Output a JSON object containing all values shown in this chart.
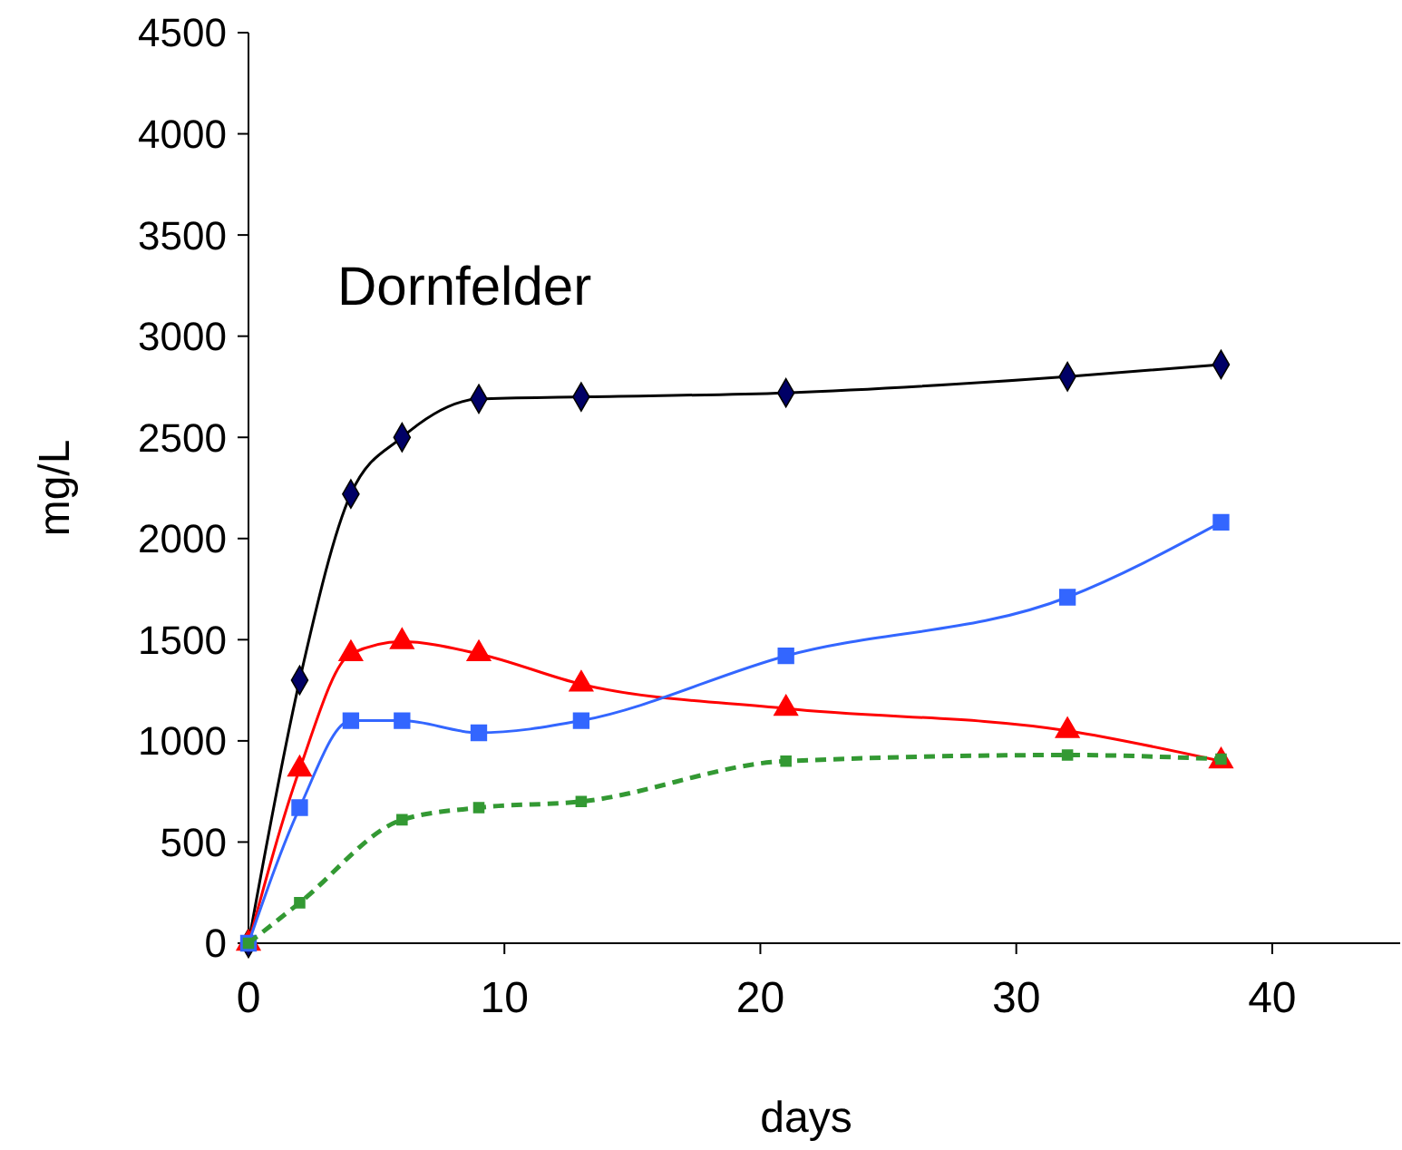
{
  "chart_data": {
    "type": "line",
    "xlabel": "days",
    "ylabel": "mg/L",
    "annotations": [
      "Dornfelder"
    ],
    "xlim": [
      0,
      45
    ],
    "xticks": [
      0,
      10,
      20,
      30,
      40
    ],
    "ylim": [
      0,
      4500
    ],
    "yticks": [
      0,
      500,
      1000,
      1500,
      2000,
      2500,
      3000,
      3500,
      4000,
      4500
    ],
    "grid": false,
    "x": [
      0,
      2,
      4,
      6,
      9,
      13,
      21,
      32,
      38
    ],
    "series": [
      {
        "color": "#000000",
        "marker": "diamond",
        "line_style": "solid",
        "values": [
          0,
          1300,
          2220,
          2500,
          2690,
          2700,
          2720,
          2800,
          2860
        ]
      },
      {
        "color": "#ff0000",
        "marker": "triangle",
        "line_style": "solid",
        "values": [
          0,
          860,
          1430,
          1490,
          1430,
          1280,
          1160,
          1050,
          900
        ]
      },
      {
        "color": "#3366ff",
        "marker": "square",
        "line_style": "solid",
        "values": [
          0,
          670,
          1100,
          1100,
          1040,
          1100,
          1420,
          1710,
          2080
        ]
      },
      {
        "color": "#339933",
        "marker": "square",
        "line_style": "dashed",
        "x": [
          0,
          2,
          6,
          9,
          13,
          21,
          32,
          38
        ],
        "values": [
          0,
          200,
          610,
          670,
          700,
          900,
          930,
          910
        ]
      }
    ]
  }
}
